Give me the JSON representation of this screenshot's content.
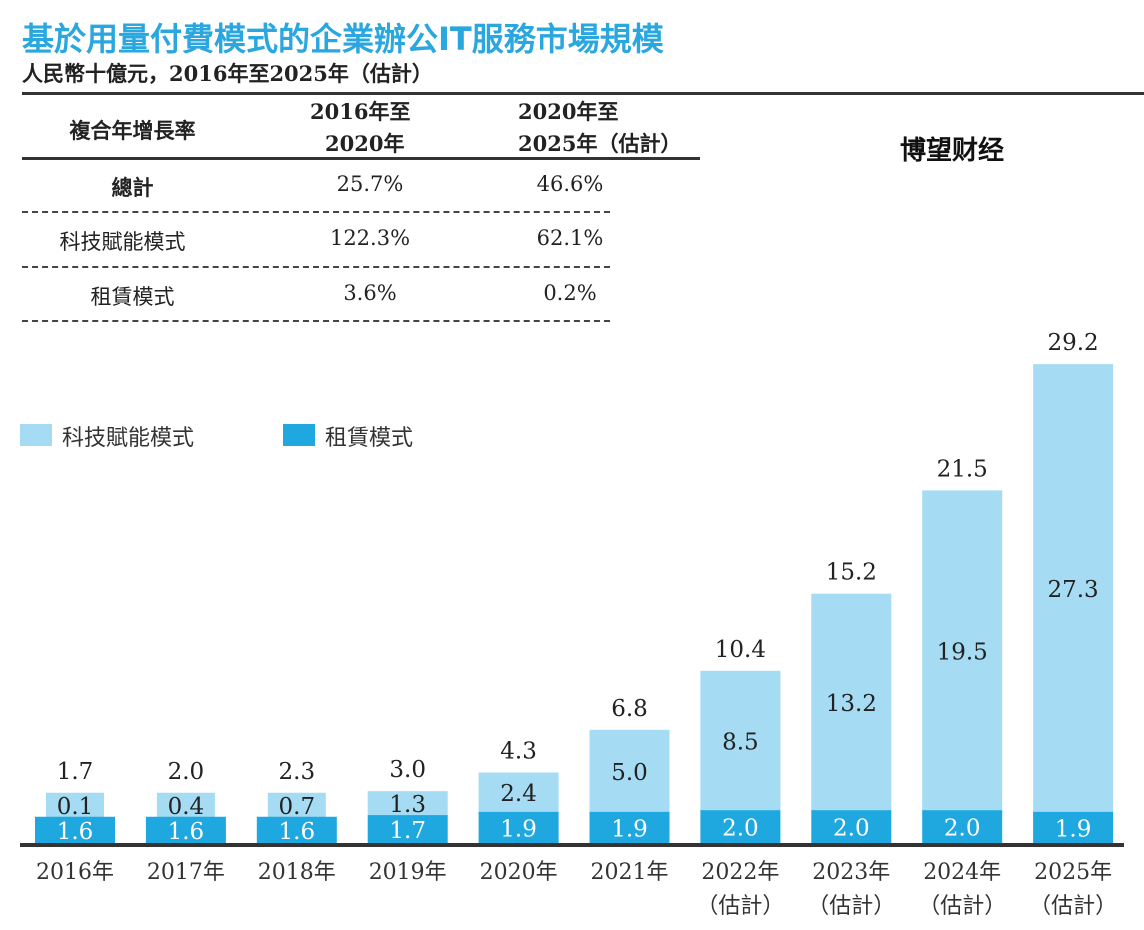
{
  "chart_data": {
    "type": "bar",
    "stacked": true,
    "title": "基於用量付費模式的企業辦公IT服務市場規模",
    "subtitle": "人民幣十億元，2016年至2025年（估計）",
    "categories": [
      "2016年",
      "2017年",
      "2018年",
      "2019年",
      "2020年",
      "2021年",
      "2022年",
      "2023年",
      "2024年",
      "2025年"
    ],
    "category_notes": [
      "",
      "",
      "",
      "",
      "",
      "",
      "（估計）",
      "（估計）",
      "（估計）",
      "（估計）"
    ],
    "series": [
      {
        "name": "租賃模式",
        "color": "#1fa7e0",
        "values": [
          1.6,
          1.6,
          1.6,
          1.7,
          1.9,
          1.9,
          2.0,
          2.0,
          2.0,
          1.9
        ]
      },
      {
        "name": "科技賦能模式",
        "color": "#a5dcf3",
        "values": [
          0.1,
          0.4,
          0.7,
          1.3,
          2.4,
          5.0,
          8.5,
          13.2,
          19.5,
          27.3
        ]
      }
    ],
    "totals": [
      1.7,
      2.0,
      2.3,
      3.0,
      4.3,
      6.8,
      10.4,
      15.2,
      21.5,
      29.2
    ],
    "legend_position": "top-left",
    "grid": false
  },
  "cagr_table": {
    "header": [
      "複合年增長率",
      "2016年至\n2020年",
      "2020年至\n2025年（估計）"
    ],
    "header_col1": [
      "2016年至",
      "2020年"
    ],
    "header_col2": [
      "2020年至",
      "2025年（估計）"
    ],
    "rows": [
      [
        "總計",
        "25.7%",
        "46.6%"
      ],
      [
        "科技賦能模式",
        "122.3%",
        "62.1%"
      ],
      [
        "租賃模式",
        "3.6%",
        "0.2%"
      ]
    ]
  },
  "watermark": "博望财经"
}
